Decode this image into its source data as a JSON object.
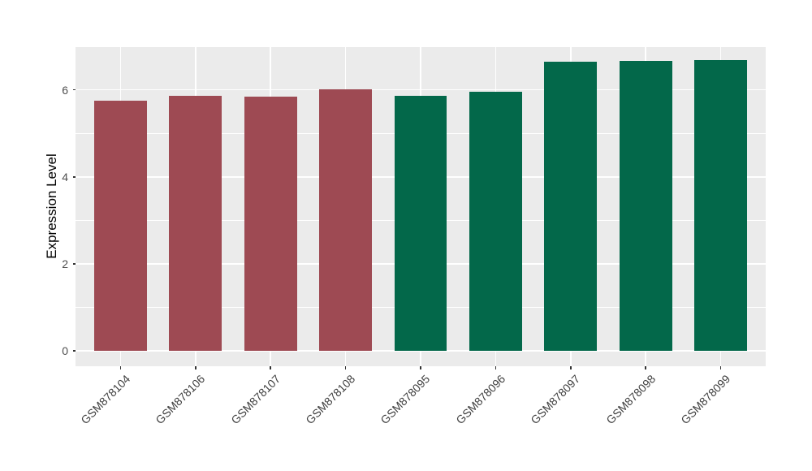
{
  "chart_data": {
    "type": "bar",
    "title": "",
    "ylabel": "Expression Level",
    "xlabel": "",
    "categories": [
      "GSM878104",
      "GSM878106",
      "GSM878107",
      "GSM878108",
      "GSM878095",
      "GSM878096",
      "GSM878097",
      "GSM878098",
      "GSM878099"
    ],
    "values": [
      5.75,
      5.87,
      5.84,
      6.01,
      5.86,
      5.95,
      6.64,
      6.66,
      6.68
    ],
    "colors": [
      "#9E4A53",
      "#9E4A53",
      "#9E4A53",
      "#9E4A53",
      "#03684A",
      "#03684A",
      "#03684A",
      "#03684A",
      "#03684A"
    ],
    "group_colors": {
      "left_group": "#9E4A53",
      "right_group": "#03684A"
    },
    "ylim": [
      -0.35,
      7.0
    ],
    "y_ticks": [
      0,
      2,
      4,
      6
    ],
    "y_minor_ticks": [
      1,
      3,
      5,
      7
    ],
    "bar_width_fraction": 0.7,
    "discrete_expand": 0.6,
    "grid": "on",
    "legend": "none",
    "panel_bg": "#EBEBEB",
    "grid_color": "#FFFFFF",
    "axis_text_color": "#4d4d4d",
    "axis_title_color": "#000000",
    "tick_mark_color": "#333333"
  }
}
